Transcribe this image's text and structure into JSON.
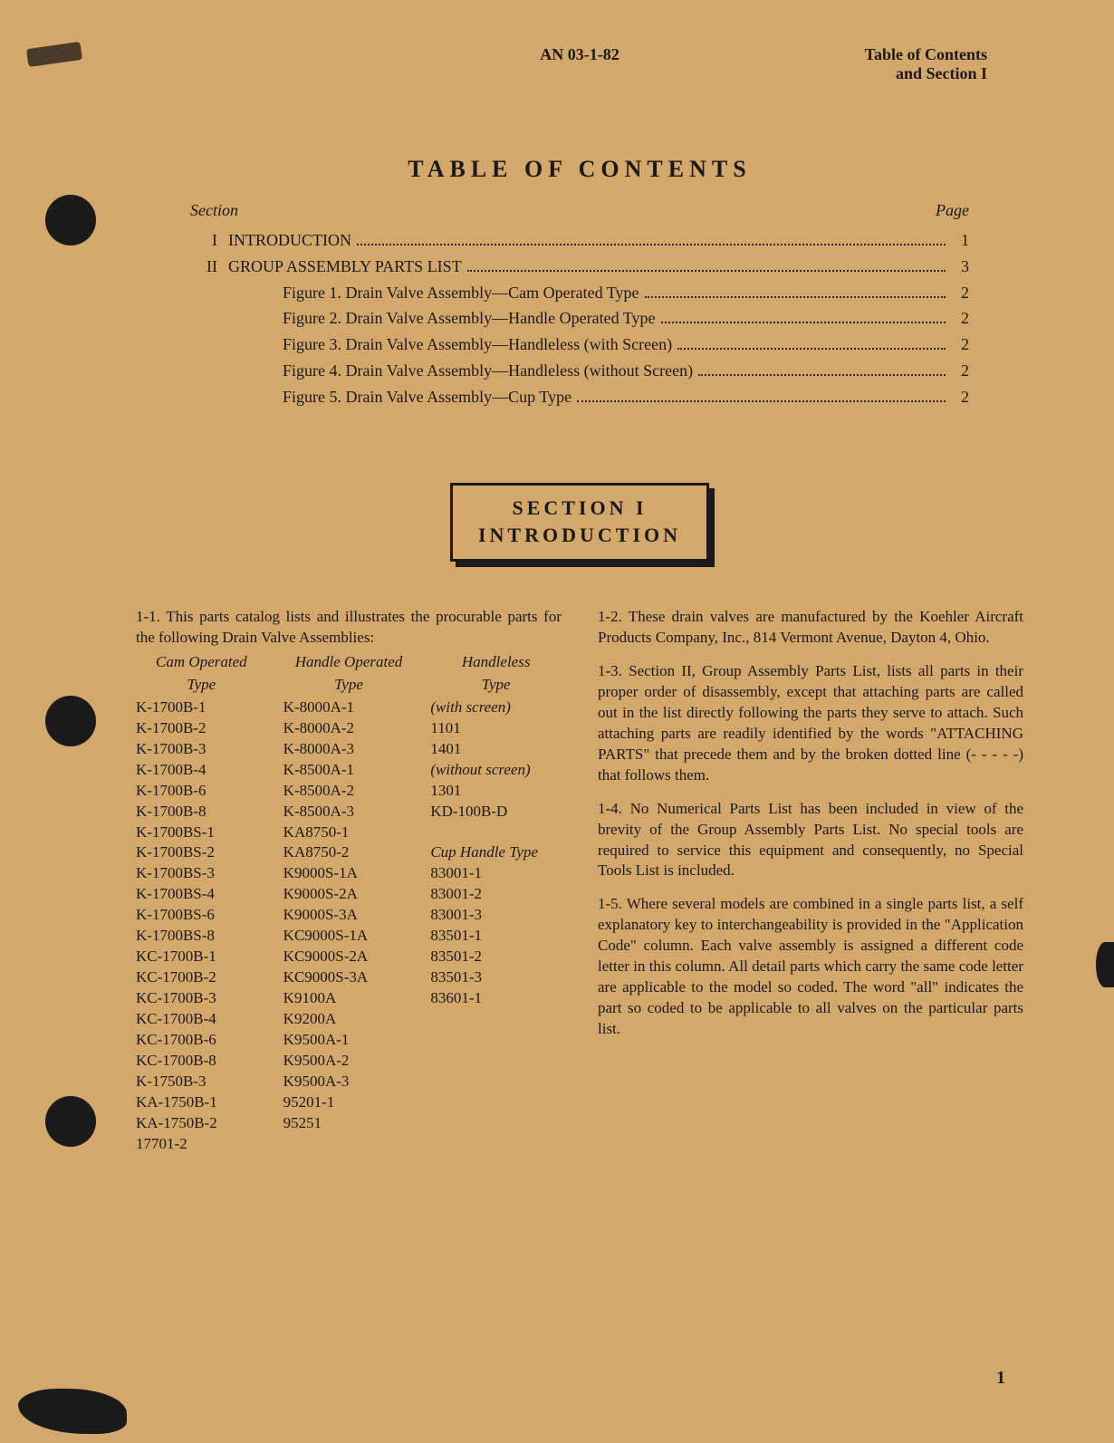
{
  "header": {
    "center": "AN 03-1-82",
    "right_line1": "Table of Contents",
    "right_line2": "and Section I"
  },
  "toc": {
    "title": "TABLE OF CONTENTS",
    "section_label": "Section",
    "page_label": "Page",
    "rows": [
      {
        "num": "I",
        "label": "INTRODUCTION",
        "page": "1",
        "indent": false
      },
      {
        "num": "II",
        "label": "GROUP ASSEMBLY PARTS LIST",
        "page": "3",
        "indent": false
      },
      {
        "num": "",
        "label": "Figure 1. Drain Valve Assembly—Cam Operated Type",
        "page": "2",
        "indent": true
      },
      {
        "num": "",
        "label": "Figure 2. Drain Valve Assembly—Handle Operated Type",
        "page": "2",
        "indent": true
      },
      {
        "num": "",
        "label": "Figure 3. Drain Valve Assembly—Handleless (with Screen)",
        "page": "2",
        "indent": true
      },
      {
        "num": "",
        "label": "Figure 4. Drain Valve Assembly—Handleless (without Screen)",
        "page": "2",
        "indent": true
      },
      {
        "num": "",
        "label": "Figure 5. Drain Valve Assembly—Cup Type",
        "page": "2",
        "indent": true
      }
    ]
  },
  "section_box": {
    "line1": "SECTION I",
    "line2": "INTRODUCTION"
  },
  "intro": {
    "p1_1": "1-1. This parts catalog lists and illustrates the procurable parts for the following Drain Valve Assemblies:",
    "table": {
      "col1_head1": "Cam Operated",
      "col1_head2": "Type",
      "col2_head1": "Handle Operated",
      "col2_head2": "Type",
      "col3_head1": "Handleless",
      "col3_head2": "Type",
      "col1": [
        "K-1700B-1",
        "K-1700B-2",
        "K-1700B-3",
        "K-1700B-4",
        "K-1700B-6",
        "K-1700B-8",
        "K-1700BS-1",
        "K-1700BS-2",
        "K-1700BS-3",
        "K-1700BS-4",
        "K-1700BS-6",
        "K-1700BS-8",
        "KC-1700B-1",
        "KC-1700B-2",
        "KC-1700B-3",
        "KC-1700B-4",
        "KC-1700B-6",
        "KC-1700B-8",
        "K-1750B-3",
        "KA-1750B-1",
        "KA-1750B-2",
        "17701-2"
      ],
      "col2": [
        "K-8000A-1",
        "K-8000A-2",
        "K-8000A-3",
        "K-8500A-1",
        "K-8500A-2",
        "K-8500A-3",
        "KA8750-1",
        "KA8750-2",
        "K9000S-1A",
        "K9000S-2A",
        "K9000S-3A",
        "KC9000S-1A",
        "KC9000S-2A",
        "KC9000S-3A",
        "K9100A",
        "K9200A",
        "K9500A-1",
        "K9500A-2",
        "K9500A-3",
        "95201-1",
        "95251"
      ],
      "col3": [
        "(with screen)",
        "1101",
        "1401",
        "(without screen)",
        "1301",
        "KD-100B-D",
        "",
        "Cup Handle Type",
        "83001-1",
        "83001-2",
        "83001-3",
        "83501-1",
        "83501-2",
        "83501-3",
        "83601-1"
      ]
    },
    "p1_2": "1-2. These drain valves are manufactured by the Koehler Aircraft Products Company, Inc., 814 Vermont Avenue, Dayton 4, Ohio.",
    "p1_3": "1-3. Section II, Group Assembly Parts List, lists all parts in their proper order of disassembly, except that attaching parts are called out in the list directly following the parts they serve to attach. Such attaching parts are readily identified by the words \"ATTACHING PARTS\" that precede them and by the broken dotted line (- - - - -) that follows them.",
    "p1_4": "1-4. No Numerical Parts List has been included in view of the brevity of the Group Assembly Parts List. No special tools are required to service this equipment and consequently, no Special Tools List is included.",
    "p1_5": "1-5. Where several models are combined in a single parts list, a self explanatory key to interchangeability is provided in the \"Application Code\" column. Each valve assembly is assigned a different code letter in this column. All detail parts which carry the same code letter are applicable to the model so coded. The word \"all\" indicates the part so coded to be applicable to all valves on the particular parts list."
  },
  "page_number": "1"
}
